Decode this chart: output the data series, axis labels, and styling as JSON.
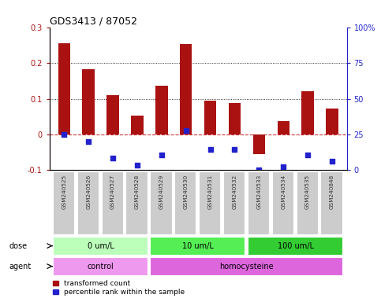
{
  "title": "GDS3413 / 87052",
  "samples": [
    "GSM240525",
    "GSM240526",
    "GSM240527",
    "GSM240528",
    "GSM240529",
    "GSM240530",
    "GSM240531",
    "GSM240532",
    "GSM240533",
    "GSM240534",
    "GSM240535",
    "GSM240848"
  ],
  "red_values": [
    0.255,
    0.182,
    0.11,
    0.052,
    0.137,
    0.252,
    0.095,
    0.087,
    -0.055,
    0.038,
    0.12,
    0.072
  ],
  "blue_values": [
    0.0,
    -0.02,
    -0.065,
    -0.085,
    -0.057,
    0.012,
    -0.042,
    -0.042,
    -0.1,
    -0.09,
    -0.057,
    -0.075
  ],
  "ylim_left": [
    -0.1,
    0.3
  ],
  "ylim_right": [
    0,
    100
  ],
  "yticks_left": [
    -0.1,
    0.0,
    0.1,
    0.2,
    0.3
  ],
  "yticks_right": [
    0,
    25,
    50,
    75,
    100
  ],
  "red_color": "#aa1111",
  "blue_color": "#2222cc",
  "zero_line_color": "#cc3333",
  "grid_color": "#000000",
  "bar_width": 0.5,
  "dose_groups": [
    {
      "label": "0 um/L",
      "start": 0,
      "end": 3,
      "color": "#bbffbb"
    },
    {
      "label": "10 um/L",
      "start": 4,
      "end": 7,
      "color": "#55ee55"
    },
    {
      "label": "100 um/L",
      "start": 8,
      "end": 11,
      "color": "#33cc33"
    }
  ],
  "agent_groups": [
    {
      "label": "control",
      "start": 0,
      "end": 3,
      "color": "#ee99ee"
    },
    {
      "label": "homocysteine",
      "start": 4,
      "end": 11,
      "color": "#dd66dd"
    }
  ],
  "sample_bg": "#cccccc",
  "legend_items": [
    {
      "color": "#aa1111",
      "label": "transformed count"
    },
    {
      "color": "#2222cc",
      "label": "percentile rank within the sample"
    }
  ]
}
